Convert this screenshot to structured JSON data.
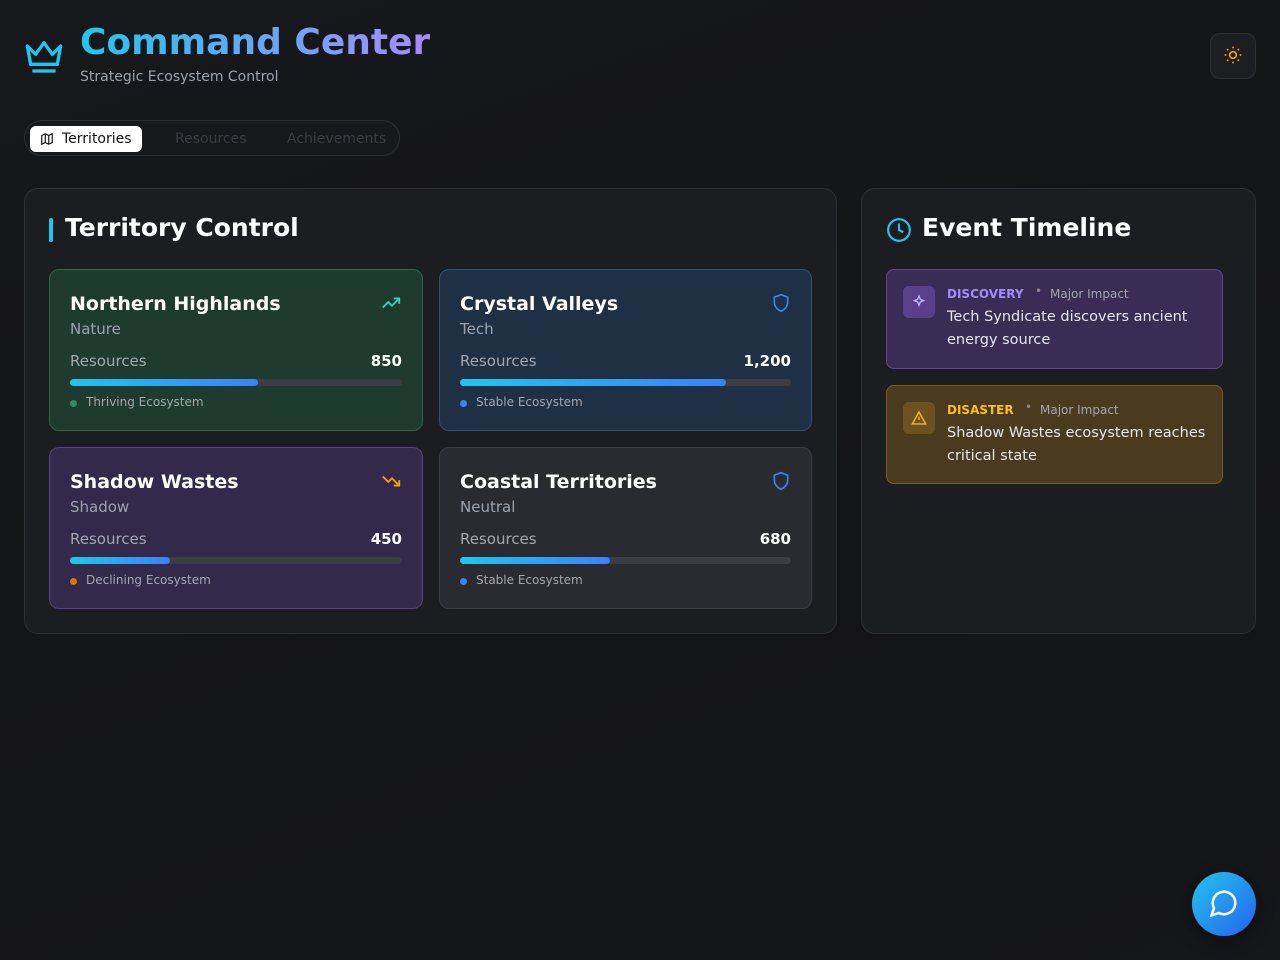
{
  "header": {
    "title": "Command Center",
    "subtitle": "Strategic Ecosystem Control"
  },
  "tabs": [
    "Territories",
    "Resources",
    "Achievements"
  ],
  "territory": {
    "title": "Territory Control",
    "resources_label": "Resources",
    "cards": [
      {
        "name": "Northern Highlands",
        "type": "Nature",
        "resources": 850,
        "status": "Thriving Ecosystem"
      },
      {
        "name": "Crystal Valleys",
        "type": "Tech",
        "resources": {
          "value": 1200,
          "label": "1,200"
        },
        "status": "Stable Ecosystem"
      },
      {
        "name": "Shadow Wastes",
        "type": "Shadow",
        "resources": 450,
        "status": "Declining Ecosystem"
      },
      {
        "name": "Coastal Territories",
        "type": "Neutral",
        "resources": 680,
        "status": "Stable Ecosystem"
      }
    ]
  },
  "timeline": {
    "title": "Event Timeline",
    "events": [
      {
        "category": "DISCOVERY",
        "impact": "Major Impact",
        "text": "Tech Syndicate discovers ancient energy source"
      },
      {
        "category": "DISASTER",
        "impact": "Major Impact",
        "text": "Shadow Wastes ecosystem reaches critical state"
      }
    ]
  }
}
